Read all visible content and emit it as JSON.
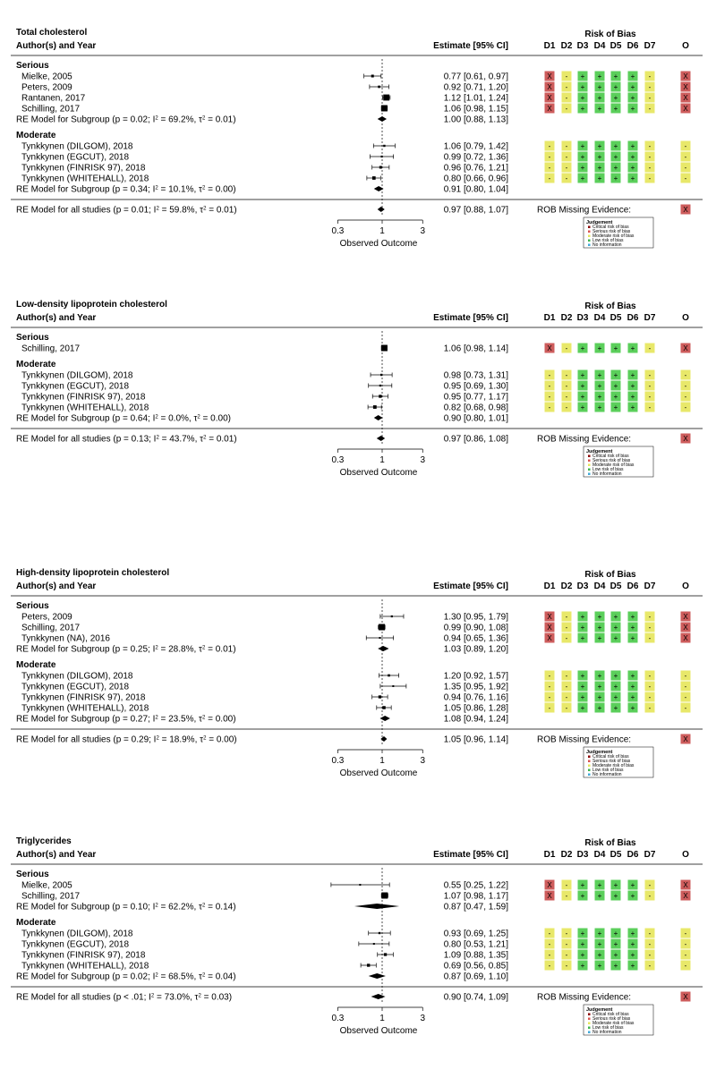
{
  "chart_data": [
    {
      "type": "forest",
      "title": "Total cholesterol",
      "col_study": "Author(s) and Year",
      "col_estimate": "Estimate [95% CI]",
      "rob_title": "Risk of Bias",
      "rob_domains": [
        "D1",
        "D2",
        "D3",
        "D4",
        "D5",
        "D6",
        "D7",
        "O"
      ],
      "xlabel": "Observed Outcome",
      "x_ticks": [
        0.3,
        1,
        3
      ],
      "x_scale": "log",
      "groups": [
        {
          "name": "Serious",
          "studies": [
            {
              "label": "Mielke, 2005",
              "est": 0.77,
              "lo": 0.61,
              "hi": 0.97,
              "ci": "0.77 [0.61, 0.97]",
              "rob": [
                "x",
                "-",
                "+",
                "+",
                "+",
                "+",
                "-",
                "x"
              ]
            },
            {
              "label": "Peters, 2009",
              "est": 0.92,
              "lo": 0.71,
              "hi": 1.2,
              "ci": "0.92 [0.71, 1.20]",
              "rob": [
                "x",
                "-",
                "+",
                "+",
                "+",
                "+",
                "-",
                "x"
              ]
            },
            {
              "label": "Rantanen, 2017",
              "est": 1.12,
              "lo": 1.01,
              "hi": 1.24,
              "ci": "1.12 [1.01, 1.24]",
              "rob": [
                "x",
                "-",
                "+",
                "+",
                "+",
                "+",
                "-",
                "x"
              ]
            },
            {
              "label": "Schilling, 2017",
              "est": 1.06,
              "lo": 0.98,
              "hi": 1.15,
              "ci": "1.06 [0.98, 1.15]",
              "rob": [
                "x",
                "-",
                "+",
                "+",
                "+",
                "+",
                "-",
                "x"
              ]
            }
          ],
          "subgroup": {
            "p": "0.02",
            "i2": "69.2%",
            "tau2": "0.01",
            "est": 1.0,
            "lo": 0.88,
            "hi": 1.13,
            "ci": "1.00 [0.88, 1.13]"
          }
        },
        {
          "name": "Moderate",
          "studies": [
            {
              "label": "Tynkkynen (DILGOM), 2018",
              "est": 1.06,
              "lo": 0.79,
              "hi": 1.42,
              "ci": "1.06 [0.79, 1.42]",
              "rob": [
                "-",
                "-",
                "+",
                "+",
                "+",
                "+",
                "-",
                "-"
              ]
            },
            {
              "label": "Tynkkynen (EGCUT), 2018",
              "est": 0.99,
              "lo": 0.72,
              "hi": 1.36,
              "ci": "0.99 [0.72, 1.36]",
              "rob": [
                "-",
                "-",
                "+",
                "+",
                "+",
                "+",
                "-",
                "-"
              ]
            },
            {
              "label": "Tynkkynen (FINRISK 97), 2018",
              "est": 0.96,
              "lo": 0.76,
              "hi": 1.21,
              "ci": "0.96 [0.76, 1.21]",
              "rob": [
                "-",
                "-",
                "+",
                "+",
                "+",
                "+",
                "-",
                "-"
              ]
            },
            {
              "label": "Tynkkynen (WHITEHALL), 2018",
              "est": 0.8,
              "lo": 0.66,
              "hi": 0.96,
              "ci": "0.80 [0.66, 0.96]",
              "rob": [
                "-",
                "-",
                "+",
                "+",
                "+",
                "+",
                "-",
                "-"
              ]
            }
          ],
          "subgroup": {
            "p": "0.34",
            "i2": "10.1%",
            "tau2": "0.00",
            "est": 0.91,
            "lo": 0.8,
            "hi": 1.04,
            "ci": "0.91 [0.80, 1.04]"
          }
        }
      ],
      "overall": {
        "p": "0.01",
        "i2": "59.8%",
        "tau2": "0.01",
        "est": 0.97,
        "lo": 0.88,
        "hi": 1.07,
        "ci": "0.97 [0.88, 1.07]",
        "rob": "x"
      },
      "missing_label": "ROB Missing Evidence:",
      "legend_title": "Judgement",
      "legend": [
        "Critical risk of bias",
        "Serious risk of bias",
        "Moderate risk of bias",
        "Low risk of bias",
        "No information"
      ]
    },
    {
      "type": "forest",
      "title": "Low-density lipoprotein cholesterol",
      "col_study": "Author(s) and Year",
      "col_estimate": "Estimate [95% CI]",
      "rob_title": "Risk of Bias",
      "rob_domains": [
        "D1",
        "D2",
        "D3",
        "D4",
        "D5",
        "D6",
        "D7",
        "O"
      ],
      "xlabel": "Observed Outcome",
      "x_ticks": [
        0.3,
        1,
        3
      ],
      "x_scale": "log",
      "groups": [
        {
          "name": "Serious",
          "studies": [
            {
              "label": "Schilling, 2017",
              "est": 1.06,
              "lo": 0.98,
              "hi": 1.14,
              "ci": "1.06 [0.98, 1.14]",
              "rob": [
                "x",
                "-",
                "+",
                "+",
                "+",
                "+",
                "-",
                "x"
              ]
            }
          ],
          "subgroup": null
        },
        {
          "name": "Moderate",
          "studies": [
            {
              "label": "Tynkkynen (DILGOM), 2018",
              "est": 0.98,
              "lo": 0.73,
              "hi": 1.31,
              "ci": "0.98 [0.73, 1.31]",
              "rob": [
                "-",
                "-",
                "+",
                "+",
                "+",
                "+",
                "-",
                "-"
              ]
            },
            {
              "label": "Tynkkynen (EGCUT), 2018",
              "est": 0.95,
              "lo": 0.69,
              "hi": 1.3,
              "ci": "0.95 [0.69, 1.30]",
              "rob": [
                "-",
                "-",
                "+",
                "+",
                "+",
                "+",
                "-",
                "-"
              ]
            },
            {
              "label": "Tynkkynen (FINRISK 97), 2018",
              "est": 0.95,
              "lo": 0.77,
              "hi": 1.17,
              "ci": "0.95 [0.77, 1.17]",
              "rob": [
                "-",
                "-",
                "+",
                "+",
                "+",
                "+",
                "-",
                "-"
              ]
            },
            {
              "label": "Tynkkynen (WHITEHALL), 2018",
              "est": 0.82,
              "lo": 0.68,
              "hi": 0.98,
              "ci": "0.82 [0.68, 0.98]",
              "rob": [
                "-",
                "-",
                "+",
                "+",
                "+",
                "+",
                "-",
                "-"
              ]
            }
          ],
          "subgroup": {
            "p": "0.64",
            "i2": "0.0%",
            "tau2": "0.00",
            "est": 0.9,
            "lo": 0.8,
            "hi": 1.01,
            "ci": "0.90 [0.80, 1.01]"
          }
        }
      ],
      "overall": {
        "p": "0.13",
        "i2": "43.7%",
        "tau2": "0.01",
        "est": 0.97,
        "lo": 0.86,
        "hi": 1.08,
        "ci": "0.97 [0.86, 1.08]",
        "rob": "x"
      },
      "missing_label": "ROB Missing Evidence:",
      "legend_title": "Judgement",
      "legend": [
        "Critical risk of bias",
        "Serious risk of bias",
        "Moderate risk of bias",
        "Low risk of bias",
        "No information"
      ]
    },
    {
      "type": "forest",
      "title": "High-density lipoprotein cholesterol",
      "col_study": "Author(s) and Year",
      "col_estimate": "Estimate [95% CI]",
      "rob_title": "Risk of Bias",
      "rob_domains": [
        "D1",
        "D2",
        "D3",
        "D4",
        "D5",
        "D6",
        "D7",
        "O"
      ],
      "xlabel": "Observed Outcome",
      "x_ticks": [
        0.3,
        1,
        3
      ],
      "x_scale": "log",
      "groups": [
        {
          "name": "Serious",
          "studies": [
            {
              "label": "Peters, 2009",
              "est": 1.3,
              "lo": 0.95,
              "hi": 1.79,
              "ci": "1.30 [0.95, 1.79]",
              "rob": [
                "x",
                "-",
                "+",
                "+",
                "+",
                "+",
                "-",
                "x"
              ]
            },
            {
              "label": "Schilling, 2017",
              "est": 0.99,
              "lo": 0.9,
              "hi": 1.08,
              "ci": "0.99 [0.90, 1.08]",
              "rob": [
                "x",
                "-",
                "+",
                "+",
                "+",
                "+",
                "-",
                "x"
              ]
            },
            {
              "label": "Tynkkynen (NA), 2016",
              "est": 0.94,
              "lo": 0.65,
              "hi": 1.36,
              "ci": "0.94 [0.65, 1.36]",
              "rob": [
                "x",
                "-",
                "+",
                "+",
                "+",
                "+",
                "-",
                "x"
              ]
            }
          ],
          "subgroup": {
            "p": "0.25",
            "i2": "28.8%",
            "tau2": "0.01",
            "est": 1.03,
            "lo": 0.89,
            "hi": 1.2,
            "ci": "1.03 [0.89, 1.20]"
          }
        },
        {
          "name": "Moderate",
          "studies": [
            {
              "label": "Tynkkynen (DILGOM), 2018",
              "est": 1.2,
              "lo": 0.92,
              "hi": 1.57,
              "ci": "1.20 [0.92, 1.57]",
              "rob": [
                "-",
                "-",
                "+",
                "+",
                "+",
                "+",
                "-",
                "-"
              ]
            },
            {
              "label": "Tynkkynen (EGCUT), 2018",
              "est": 1.35,
              "lo": 0.95,
              "hi": 1.92,
              "ci": "1.35 [0.95, 1.92]",
              "rob": [
                "-",
                "-",
                "+",
                "+",
                "+",
                "+",
                "-",
                "-"
              ]
            },
            {
              "label": "Tynkkynen (FINRISK 97), 2018",
              "est": 0.94,
              "lo": 0.76,
              "hi": 1.16,
              "ci": "0.94 [0.76, 1.16]",
              "rob": [
                "-",
                "-",
                "+",
                "+",
                "+",
                "+",
                "-",
                "-"
              ]
            },
            {
              "label": "Tynkkynen (WHITEHALL), 2018",
              "est": 1.05,
              "lo": 0.86,
              "hi": 1.28,
              "ci": "1.05 [0.86, 1.28]",
              "rob": [
                "-",
                "-",
                "+",
                "+",
                "+",
                "+",
                "-",
                "-"
              ]
            }
          ],
          "subgroup": {
            "p": "0.27",
            "i2": "23.5%",
            "tau2": "0.00",
            "est": 1.08,
            "lo": 0.94,
            "hi": 1.24,
            "ci": "1.08 [0.94, 1.24]"
          }
        }
      ],
      "overall": {
        "p": "0.29",
        "i2": "18.9%",
        "tau2": "0.00",
        "est": 1.05,
        "lo": 0.96,
        "hi": 1.14,
        "ci": "1.05 [0.96, 1.14]",
        "rob": "x"
      },
      "missing_label": "ROB Missing Evidence:",
      "legend_title": "Judgement",
      "legend": [
        "Critical risk of bias",
        "Serious risk of bias",
        "Moderate risk of bias",
        "Low risk of bias",
        "No information"
      ]
    },
    {
      "type": "forest",
      "title": "Triglycerides",
      "col_study": "Author(s) and Year",
      "col_estimate": "Estimate [95% CI]",
      "rob_title": "Risk of Bias",
      "rob_domains": [
        "D1",
        "D2",
        "D3",
        "D4",
        "D5",
        "D6",
        "D7",
        "O"
      ],
      "xlabel": "Observed Outcome",
      "x_ticks": [
        0.3,
        1,
        3
      ],
      "x_scale": "log",
      "groups": [
        {
          "name": "Serious",
          "studies": [
            {
              "label": "Mielke, 2005",
              "est": 0.55,
              "lo": 0.25,
              "hi": 1.22,
              "ci": "0.55 [0.25, 1.22]",
              "rob": [
                "x",
                "-",
                "+",
                "+",
                "+",
                "+",
                "-",
                "x"
              ]
            },
            {
              "label": "Schilling, 2017",
              "est": 1.07,
              "lo": 0.98,
              "hi": 1.17,
              "ci": "1.07 [0.98, 1.17]",
              "rob": [
                "x",
                "-",
                "+",
                "+",
                "+",
                "+",
                "-",
                "x"
              ]
            }
          ],
          "subgroup": {
            "p": "0.10",
            "i2": "62.2%",
            "tau2": "0.14",
            "est": 0.87,
            "lo": 0.47,
            "hi": 1.59,
            "ci": "0.87 [0.47, 1.59]"
          }
        },
        {
          "name": "Moderate",
          "studies": [
            {
              "label": "Tynkkynen (DILGOM), 2018",
              "est": 0.93,
              "lo": 0.69,
              "hi": 1.25,
              "ci": "0.93 [0.69, 1.25]",
              "rob": [
                "-",
                "-",
                "+",
                "+",
                "+",
                "+",
                "-",
                "-"
              ]
            },
            {
              "label": "Tynkkynen (EGCUT), 2018",
              "est": 0.8,
              "lo": 0.53,
              "hi": 1.21,
              "ci": "0.80 [0.53, 1.21]",
              "rob": [
                "-",
                "-",
                "+",
                "+",
                "+",
                "+",
                "-",
                "-"
              ]
            },
            {
              "label": "Tynkkynen (FINRISK 97), 2018",
              "est": 1.09,
              "lo": 0.88,
              "hi": 1.35,
              "ci": "1.09 [0.88, 1.35]",
              "rob": [
                "-",
                "-",
                "+",
                "+",
                "+",
                "+",
                "-",
                "-"
              ]
            },
            {
              "label": "Tynkkynen (WHITEHALL), 2018",
              "est": 0.69,
              "lo": 0.56,
              "hi": 0.85,
              "ci": "0.69 [0.56, 0.85]",
              "rob": [
                "-",
                "-",
                "+",
                "+",
                "+",
                "+",
                "-",
                "-"
              ]
            }
          ],
          "subgroup": {
            "p": "0.02",
            "i2": "68.5%",
            "tau2": "0.04",
            "est": 0.87,
            "lo": 0.69,
            "hi": 1.1,
            "ci": "0.87 [0.69, 1.10]"
          }
        }
      ],
      "overall": {
        "p": "< .01",
        "i2": "73.0%",
        "tau2": "0.03",
        "est": 0.9,
        "lo": 0.74,
        "hi": 1.09,
        "ci": "0.90 [0.74, 1.09]",
        "rob": "x"
      },
      "missing_label": "ROB Missing Evidence:",
      "legend_title": "Judgement",
      "legend": [
        "Critical risk of bias",
        "Serious risk of bias",
        "Moderate risk of bias",
        "Low risk of bias",
        "No information"
      ]
    }
  ],
  "colors": {
    "critical": "#8b0000",
    "serious": "#d9534f",
    "moderate": "#e6e65c",
    "low": "#3cb44b",
    "noinfo": "#3fa9d9",
    "rob_x": "#cd5c5c",
    "rob_minus": "#e8e86a",
    "rob_plus": "#5bcf5b"
  }
}
